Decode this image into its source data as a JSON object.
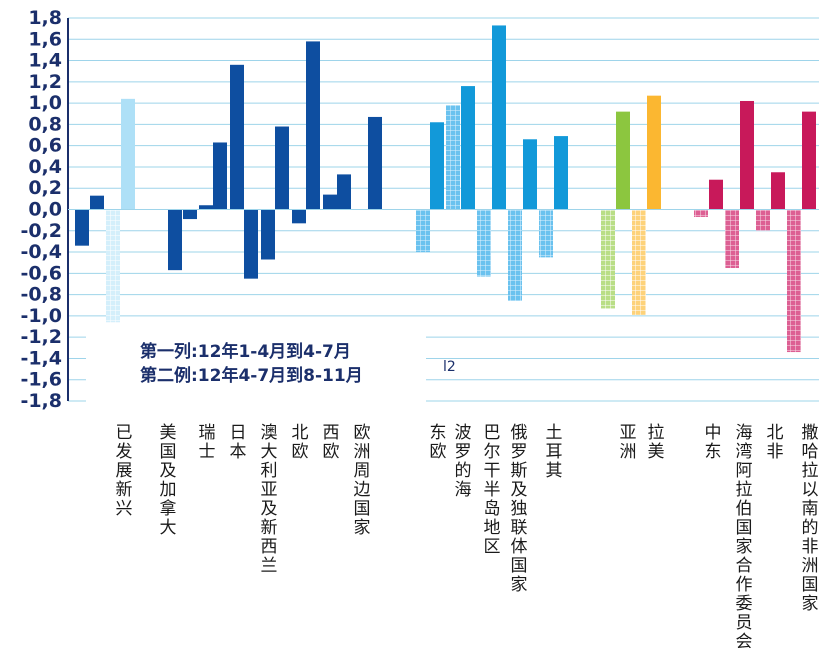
{
  "chart_data": {
    "type": "bar",
    "ylim": [
      -1.8,
      1.8
    ],
    "grid": true,
    "y_ticks": [
      "1,8",
      "1,6",
      "1,4",
      "1,2",
      "1,0",
      "0,8",
      "0,6",
      "0,4",
      "0,2",
      "0,0",
      "-0,2",
      "-0,4",
      "-0,6",
      "-0,8",
      "-1,0",
      "-1,2",
      "-1,4",
      "-1,6",
      "-1,8"
    ],
    "notes": [
      "第一列:12年1-4月到4-7月",
      "第二例:12年4-7月到8-11月"
    ],
    "stray_label": "l2",
    "categories": [
      {
        "label": "已发展新兴",
        "values": [
          -0.34,
          0.13,
          -1.06,
          1.04
        ]
      },
      {
        "label": "美国及加拿大",
        "values": [
          -0.57,
          -0.09
        ]
      },
      {
        "label": "瑞士",
        "values": [
          0.04,
          0.63
        ]
      },
      {
        "label": "日本",
        "values": [
          1.36,
          -0.65
        ]
      },
      {
        "label": "澳大利亚及新西兰",
        "values": [
          -0.47,
          0.78
        ]
      },
      {
        "label": "北欧",
        "values": [
          -0.13,
          1.58
        ]
      },
      {
        "label": "西欧",
        "values": [
          0.14,
          0.33
        ]
      },
      {
        "label": "欧洲周边国家",
        "values": [
          0.87
        ]
      },
      {
        "label": "东欧",
        "values": [
          -0.4,
          0.82
        ]
      },
      {
        "label": "波罗的海",
        "values": [
          0.98,
          1.16
        ]
      },
      {
        "label": "巴尔干半岛地区",
        "values": [
          -0.63,
          1.73
        ]
      },
      {
        "label": "俄罗斯及独联体国家",
        "values": [
          -0.86,
          0.66
        ]
      },
      {
        "label": "土耳其",
        "values": [
          -0.45,
          0.69
        ]
      },
      {
        "label": "亚洲",
        "values": [
          -0.93,
          0.92
        ]
      },
      {
        "label": "拉美",
        "values": [
          -0.99,
          1.07
        ]
      },
      {
        "label": "中东",
        "values": [
          -0.07,
          0.28
        ]
      },
      {
        "label": "海湾阿拉伯国家合作委员会",
        "values": [
          -0.55,
          1.02
        ]
      },
      {
        "label": "北非",
        "values": [
          -0.2,
          0.35
        ]
      },
      {
        "label": "撒哈拉以南的非洲国家",
        "values": [
          -1.34,
          0.92
        ]
      }
    ],
    "colors": {
      "dark_blue": "#0e4ea0",
      "light_blue": "#aee0f7",
      "mid_blue": "#1299d9",
      "mid_blue_light": "#8fd0f1",
      "green": "#8cc63f",
      "green_light": "#cde9a8",
      "orange": "#fbb731",
      "orange_light": "#fdd98c",
      "magenta": "#c8195a",
      "magenta_light": "#e88bb1",
      "grid": "#9ed4ea",
      "axis": "#1b2f6b"
    }
  }
}
